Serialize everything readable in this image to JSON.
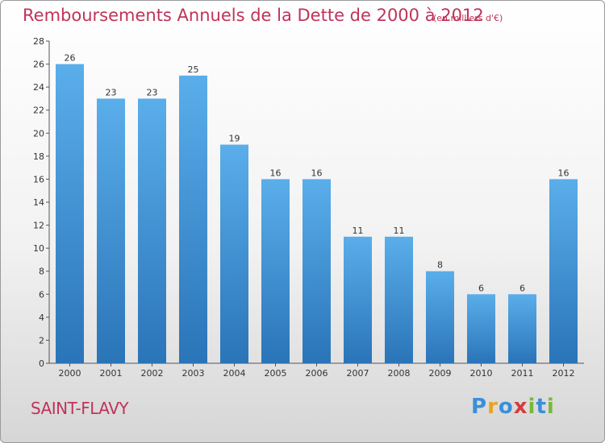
{
  "header": {
    "title": "Remboursements Annuels de la Dette de 2000 à 2012",
    "subtitle": "(en milliers d'€)"
  },
  "footer": {
    "city": "SAINT-FLAVY",
    "logo_letters": [
      "P",
      "r",
      "o",
      "x",
      "i",
      "t",
      "i"
    ],
    "logo_colors": [
      "#3a8fd8",
      "#e8a325",
      "#3a8fd8",
      "#d93a3a",
      "#7ab63c",
      "#3a8fd8",
      "#7ab63c"
    ]
  },
  "chart_data": {
    "type": "bar",
    "title": "Remboursements Annuels de la Dette de 2000 à 2012",
    "xlabel": "",
    "ylabel": "",
    "categories": [
      "2000",
      "2001",
      "2002",
      "2003",
      "2004",
      "2005",
      "2006",
      "2007",
      "2008",
      "2009",
      "2010",
      "2011",
      "2012"
    ],
    "values": [
      26,
      23,
      23,
      25,
      19,
      16,
      16,
      11,
      11,
      8,
      6,
      6,
      16
    ],
    "ylim": [
      0,
      28
    ],
    "yticks": [
      0,
      2,
      4,
      6,
      8,
      10,
      12,
      14,
      16,
      18,
      20,
      22,
      24,
      26,
      28
    ],
    "grid": false,
    "bar_color_top": "#5aaeea",
    "bar_color_bottom": "#2a74b8"
  }
}
